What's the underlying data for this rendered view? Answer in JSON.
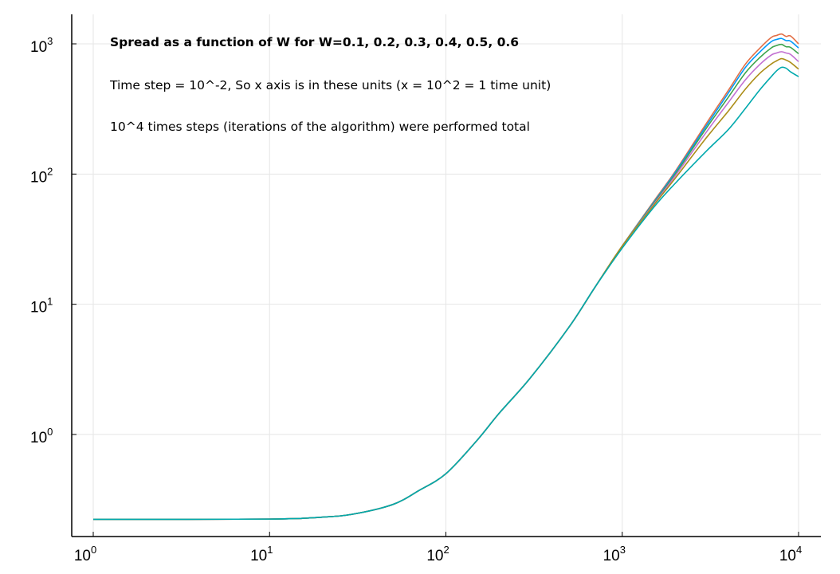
{
  "chart_data": {
    "type": "line",
    "xscale": "log",
    "yscale": "log",
    "xlim": [
      1,
      10000
    ],
    "ylim": [
      0.2,
      1500
    ],
    "grid": true,
    "legend": "none",
    "title": "",
    "xlabel": "",
    "ylabel": "",
    "x_ticks": [
      {
        "base": "10",
        "exp": "0",
        "value": 1
      },
      {
        "base": "10",
        "exp": "1",
        "value": 10
      },
      {
        "base": "10",
        "exp": "2",
        "value": 100
      },
      {
        "base": "10",
        "exp": "3",
        "value": 1000
      },
      {
        "base": "10",
        "exp": "4",
        "value": 10000
      }
    ],
    "y_ticks": [
      {
        "base": "10",
        "exp": "0",
        "value": 1
      },
      {
        "base": "10",
        "exp": "1",
        "value": 10
      },
      {
        "base": "10",
        "exp": "2",
        "value": 100
      },
      {
        "base": "10",
        "exp": "3",
        "value": 1000
      }
    ],
    "annotations": [
      {
        "text": "Spread as a function of W for W=0.1, 0.2, 0.3, 0.4, 0.5, 0.6",
        "bold": true
      },
      {
        "text": "Time step = 10^-2, So x axis is in these units (x = 10^2 = 1 time unit)",
        "bold": false
      },
      {
        "text": "10^4 times steps (iterations of the algorithm) were performed total",
        "bold": false
      }
    ],
    "x": [
      1,
      10,
      20,
      30,
      50,
      70,
      100,
      150,
      200,
      300,
      500,
      700,
      1000,
      1500,
      2000,
      3000,
      4000,
      5000,
      6000,
      7000,
      7500,
      8000,
      8500,
      9000,
      10000
    ],
    "series": [
      {
        "color": "#e26f46",
        "values": [
          0.223,
          0.224,
          0.232,
          0.245,
          0.29,
          0.37,
          0.5,
          0.9,
          1.45,
          2.7,
          6.7,
          13.5,
          28,
          61,
          105,
          245,
          440,
          700,
          920,
          1120,
          1160,
          1190,
          1140,
          1150,
          1000
        ]
      },
      {
        "color": "#009af9",
        "values": [
          0.223,
          0.224,
          0.232,
          0.245,
          0.29,
          0.37,
          0.5,
          0.9,
          1.45,
          2.7,
          6.7,
          13.5,
          28,
          60,
          103,
          235,
          420,
          660,
          860,
          1040,
          1080,
          1100,
          1060,
          1050,
          930
        ]
      },
      {
        "color": "#3da44d",
        "values": [
          0.223,
          0.224,
          0.232,
          0.245,
          0.29,
          0.37,
          0.5,
          0.9,
          1.45,
          2.7,
          6.7,
          13.5,
          28,
          59,
          100,
          225,
          390,
          600,
          780,
          930,
          970,
          990,
          950,
          940,
          840
        ]
      },
      {
        "color": "#c271d2",
        "values": [
          0.223,
          0.224,
          0.232,
          0.245,
          0.29,
          0.37,
          0.5,
          0.9,
          1.45,
          2.7,
          6.7,
          13.5,
          28,
          58,
          97,
          210,
          355,
          530,
          690,
          820,
          850,
          870,
          850,
          830,
          730
        ]
      },
      {
        "color": "#ac8d18",
        "values": [
          0.223,
          0.224,
          0.232,
          0.245,
          0.29,
          0.37,
          0.5,
          0.9,
          1.45,
          2.7,
          6.7,
          13.5,
          28,
          57,
          93,
          190,
          305,
          450,
          590,
          700,
          740,
          770,
          750,
          720,
          640
        ]
      },
      {
        "color": "#00a9ad",
        "values": [
          0.223,
          0.224,
          0.232,
          0.245,
          0.29,
          0.37,
          0.5,
          0.9,
          1.45,
          2.7,
          6.7,
          13.5,
          27,
          55,
          85,
          150,
          220,
          320,
          440,
          560,
          620,
          660,
          650,
          610,
          560
        ]
      }
    ]
  }
}
